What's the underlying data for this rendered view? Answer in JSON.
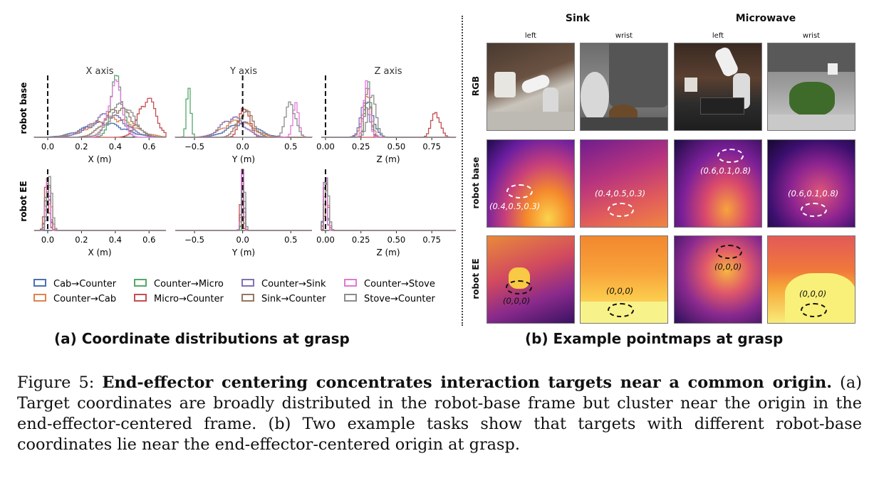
{
  "left": {
    "column_titles": [
      "X axis",
      "Y axis",
      "Z axis"
    ],
    "row_labels": [
      "robot base",
      "robot EE"
    ],
    "axis_labels": [
      "X (m)",
      "Y (m)",
      "Z (m)"
    ],
    "ticks": [
      [
        "0.0",
        "0.2",
        "0.4",
        "0.6"
      ],
      [
        "−0.5",
        "0.0",
        "0.5"
      ],
      [
        "0.00",
        "0.25",
        "0.50",
        "0.75"
      ]
    ],
    "legend": [
      {
        "label": "Cab→Counter",
        "color": "#4c72b0"
      },
      {
        "label": "Counter→Micro",
        "color": "#55a868"
      },
      {
        "label": "Counter→Sink",
        "color": "#8172b2"
      },
      {
        "label": "Counter→Stove",
        "color": "#e078d8"
      },
      {
        "label": "Counter→Cab",
        "color": "#dd8452"
      },
      {
        "label": "Micro→Counter",
        "color": "#c44e52"
      },
      {
        "label": "Sink→Counter",
        "color": "#937860"
      },
      {
        "label": "Stove→Counter",
        "color": "#8c8c8c"
      }
    ],
    "caption": "(a) Coordinate distributions at grasp"
  },
  "chart_data": {
    "type": "histogram",
    "panels": [
      {
        "row": "robot base",
        "axis": "X",
        "xlim": [
          -0.08,
          0.7
        ],
        "series": [
          {
            "name": "Cab→Counter",
            "mode": 0.33,
            "spread": 0.12,
            "peak": 0.22
          },
          {
            "name": "Counter→Cab",
            "mode": 0.38,
            "spread": 0.12,
            "peak": 0.3
          },
          {
            "name": "Counter→Micro",
            "mode": 0.41,
            "spread": 0.035,
            "peak": 0.93
          },
          {
            "name": "Micro→Counter",
            "mode": 0.59,
            "spread": 0.05,
            "peak": 0.6
          },
          {
            "name": "Counter→Sink",
            "mode": 0.36,
            "spread": 0.1,
            "peak": 0.35
          },
          {
            "name": "Sink→Counter",
            "mode": 0.42,
            "spread": 0.08,
            "peak": 0.45
          },
          {
            "name": "Counter→Stove",
            "mode": 0.4,
            "spread": 0.04,
            "peak": 0.83
          },
          {
            "name": "Stove→Counter",
            "mode": 0.44,
            "spread": 0.07,
            "peak": 0.5
          }
        ]
      },
      {
        "row": "robot base",
        "axis": "Y",
        "xlim": [
          -0.7,
          0.72
        ],
        "series": [
          {
            "name": "Cab→Counter",
            "mode": 0.0,
            "spread": 0.15,
            "peak": 0.22
          },
          {
            "name": "Counter→Cab",
            "mode": -0.05,
            "spread": 0.15,
            "peak": 0.25
          },
          {
            "name": "Counter→Micro",
            "mode": -0.56,
            "spread": 0.02,
            "peak": 0.95
          },
          {
            "name": "Micro→Counter",
            "mode": 0.02,
            "spread": 0.05,
            "peak": 0.5
          },
          {
            "name": "Counter→Sink",
            "mode": -0.1,
            "spread": 0.12,
            "peak": 0.3
          },
          {
            "name": "Sink→Counter",
            "mode": 0.03,
            "spread": 0.08,
            "peak": 0.4
          },
          {
            "name": "Counter→Stove",
            "mode": 0.55,
            "spread": 0.03,
            "peak": 0.5
          },
          {
            "name": "Stove→Counter",
            "mode": 0.5,
            "spread": 0.05,
            "peak": 0.55
          }
        ]
      },
      {
        "row": "robot base",
        "axis": "Z",
        "xlim": [
          -0.03,
          0.92
        ],
        "series": [
          {
            "name": "Cab→Counter",
            "mode": 0.3,
            "spread": 0.04,
            "peak": 0.5
          },
          {
            "name": "Counter→Cab",
            "mode": 0.29,
            "spread": 0.03,
            "peak": 0.65
          },
          {
            "name": "Counter→Micro",
            "mode": 0.3,
            "spread": 0.02,
            "peak": 0.8
          },
          {
            "name": "Micro→Counter",
            "mode": 0.78,
            "spread": 0.03,
            "peak": 0.4
          },
          {
            "name": "Counter→Sink",
            "mode": 0.28,
            "spread": 0.03,
            "peak": 0.55
          },
          {
            "name": "Sink→Counter",
            "mode": 0.3,
            "spread": 0.02,
            "peak": 0.7
          },
          {
            "name": "Counter→Stove",
            "mode": 0.29,
            "spread": 0.02,
            "peak": 0.9
          },
          {
            "name": "Stove→Counter",
            "mode": 0.33,
            "spread": 0.03,
            "peak": 0.6
          }
        ]
      },
      {
        "row": "robot EE",
        "axis": "X",
        "xlim": [
          -0.08,
          0.7
        ],
        "series": [
          {
            "name": "Cab→Counter",
            "mode": 0.0,
            "spread": 0.012,
            "peak": 0.85
          },
          {
            "name": "Counter→Cab",
            "mode": 0.005,
            "spread": 0.015,
            "peak": 0.75
          },
          {
            "name": "Counter→Micro",
            "mode": 0.0,
            "spread": 0.01,
            "peak": 0.9
          },
          {
            "name": "Micro→Counter",
            "mode": -0.005,
            "spread": 0.012,
            "peak": 0.8
          },
          {
            "name": "Counter→Sink",
            "mode": 0.005,
            "spread": 0.01,
            "peak": 0.88
          },
          {
            "name": "Sink→Counter",
            "mode": 0.0,
            "spread": 0.012,
            "peak": 0.95
          },
          {
            "name": "Counter→Stove",
            "mode": 0.0,
            "spread": 0.01,
            "peak": 0.9
          },
          {
            "name": "Stove→Counter",
            "mode": 0.01,
            "spread": 0.015,
            "peak": 0.8
          }
        ]
      },
      {
        "row": "robot EE",
        "axis": "Y",
        "xlim": [
          -0.7,
          0.72
        ],
        "series": [
          {
            "name": "Cab→Counter",
            "mode": 0.0,
            "spread": 0.015,
            "peak": 0.85
          },
          {
            "name": "Counter→Cab",
            "mode": 0.0,
            "spread": 0.015,
            "peak": 0.7
          },
          {
            "name": "Counter→Micro",
            "mode": 0.01,
            "spread": 0.01,
            "peak": 0.8
          },
          {
            "name": "Micro→Counter",
            "mode": -0.01,
            "spread": 0.012,
            "peak": 0.85
          },
          {
            "name": "Counter→Sink",
            "mode": 0.0,
            "spread": 0.012,
            "peak": 0.9
          },
          {
            "name": "Sink→Counter",
            "mode": 0.0,
            "spread": 0.01,
            "peak": 0.95
          },
          {
            "name": "Counter→Stove",
            "mode": 0.0,
            "spread": 0.012,
            "peak": 0.9
          },
          {
            "name": "Stove→Counter",
            "mode": 0.01,
            "spread": 0.015,
            "peak": 0.75
          }
        ]
      },
      {
        "row": "robot EE",
        "axis": "Z",
        "xlim": [
          -0.03,
          0.92
        ],
        "series": [
          {
            "name": "Cab→Counter",
            "mode": 0.0,
            "spread": 0.012,
            "peak": 0.8
          },
          {
            "name": "Counter→Cab",
            "mode": 0.005,
            "spread": 0.015,
            "peak": 0.7
          },
          {
            "name": "Counter→Micro",
            "mode": 0.0,
            "spread": 0.01,
            "peak": 0.85
          },
          {
            "name": "Micro→Counter",
            "mode": 0.01,
            "spread": 0.012,
            "peak": 0.6
          },
          {
            "name": "Counter→Sink",
            "mode": 0.0,
            "spread": 0.012,
            "peak": 0.9
          },
          {
            "name": "Sink→Counter",
            "mode": 0.0,
            "spread": 0.01,
            "peak": 0.88
          },
          {
            "name": "Counter→Stove",
            "mode": 0.0,
            "spread": 0.01,
            "peak": 0.95
          },
          {
            "name": "Stove→Counter",
            "mode": 0.01,
            "spread": 0.015,
            "peak": 0.75
          }
        ]
      }
    ]
  },
  "right": {
    "column_titles": [
      "Sink",
      "Microwave"
    ],
    "view_labels": [
      "left",
      "wrist",
      "left",
      "wrist"
    ],
    "row_labels": [
      "RGB",
      "robot base",
      "robot EE"
    ],
    "coords_base": [
      "(0.4,0.5,0.3)",
      "(0.4,0.5,0.3)",
      "(0.6,0.1,0.8)",
      "(0.6,0.1,0.8)"
    ],
    "coords_ee": [
      "(0,0,0)",
      "(0,0,0)",
      "(0,0,0)",
      "(0,0,0)"
    ],
    "caption": "(b) Example pointmaps at grasp"
  },
  "figure_caption": {
    "prefix": "Figure 5: ",
    "bold": "End-effector centering concentrates interaction targets near a common origin.",
    "rest": " (a) Target coordinates are broadly distributed in the robot-base frame but cluster near the origin in the end-effector-centered frame. (b) Two example tasks show that targets with different robot-base coordinates lie near the end-effector-centered origin at grasp."
  }
}
